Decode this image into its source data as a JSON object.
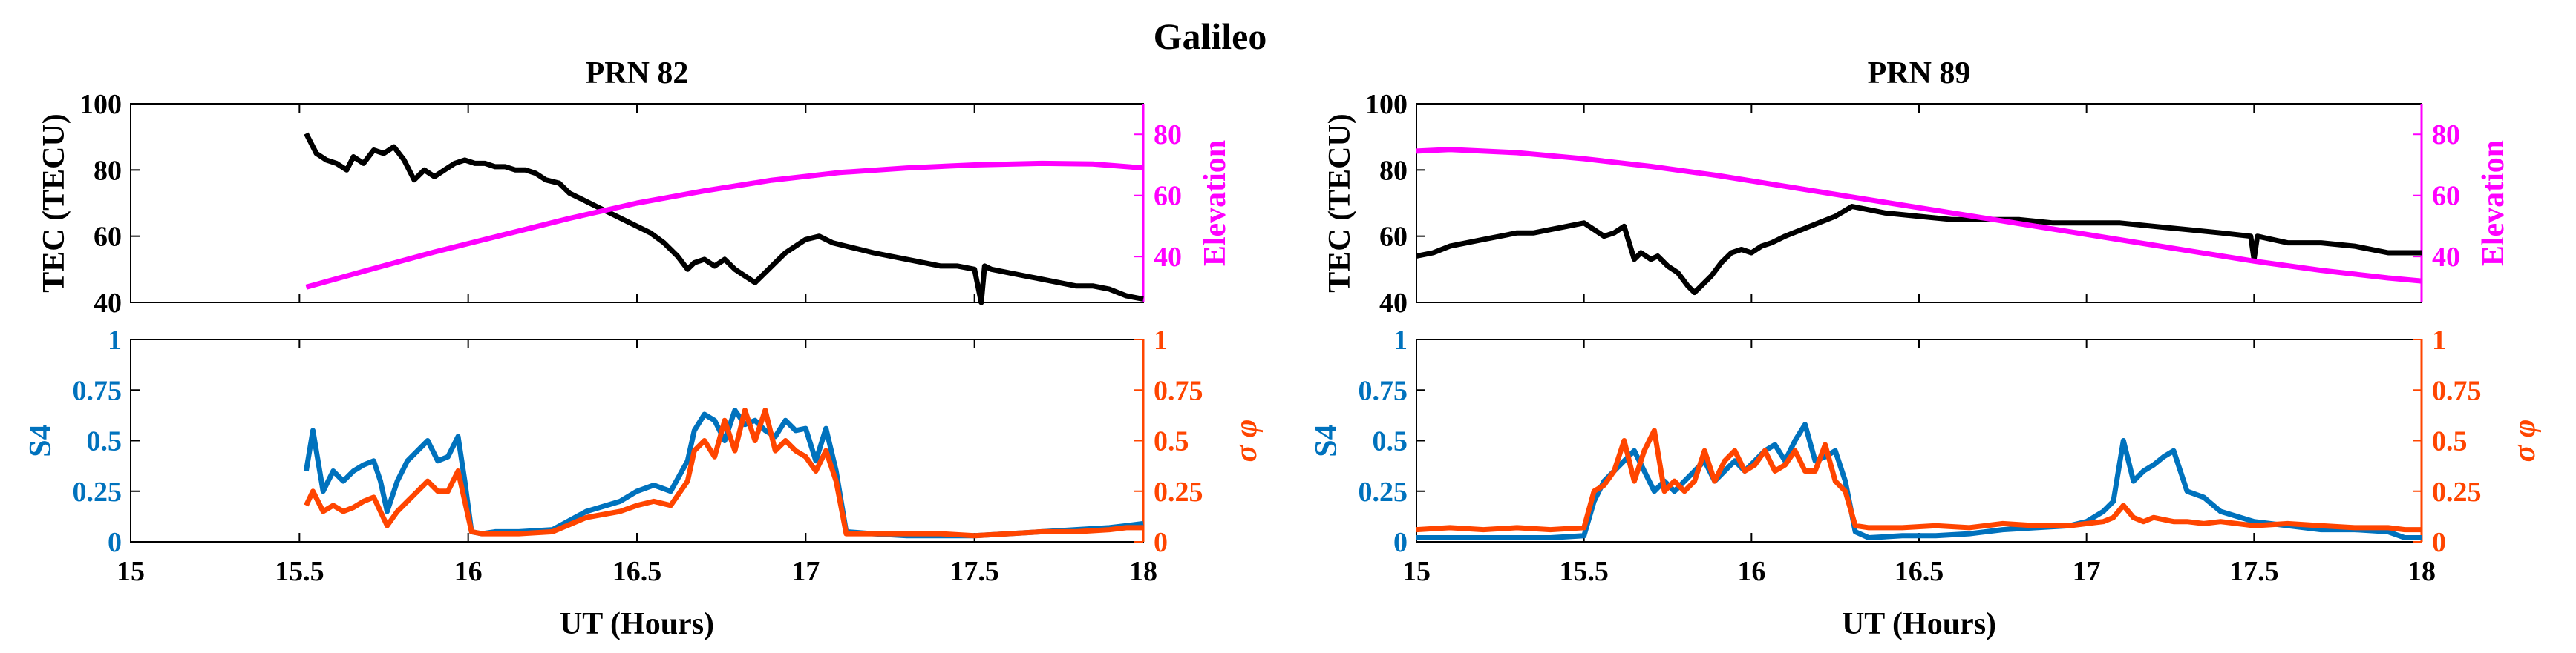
{
  "figure_title": "Galileo",
  "colors": {
    "tec": "#000000",
    "elevation": "#ff00ff",
    "s4": "#0072bd",
    "sigma_phi": "#ff4500"
  },
  "chart_data": [
    {
      "type": "line",
      "title": "PRN 82",
      "xlabel": "UT (Hours)",
      "x_ticks": [
        "15",
        "15.5",
        "16",
        "16.5",
        "17",
        "17.5",
        "18"
      ],
      "xlim": [
        15,
        18
      ],
      "top": {
        "ylabel_left": "TEC (TECU)",
        "ylabel_right": "Elevation",
        "ylim_left": [
          40,
          100
        ],
        "ylim_right": [
          25,
          90
        ],
        "yticks_left": [
          "40",
          "60",
          "80",
          "100"
        ],
        "yticks_right": [
          "40",
          "60",
          "80"
        ],
        "series": [
          {
            "name": "TEC",
            "axis": "left",
            "x": [
              15.52,
              15.55,
              15.58,
              15.61,
              15.64,
              15.66,
              15.69,
              15.72,
              15.75,
              15.78,
              15.81,
              15.84,
              15.87,
              15.9,
              15.93,
              15.96,
              15.99,
              16.02,
              16.05,
              16.08,
              16.11,
              16.14,
              16.17,
              16.2,
              16.23,
              16.27,
              16.3,
              16.34,
              16.38,
              16.42,
              16.46,
              16.5,
              16.54,
              16.58,
              16.62,
              16.65,
              16.67,
              16.7,
              16.73,
              16.76,
              16.79,
              16.82,
              16.85,
              16.88,
              16.91,
              16.94,
              16.97,
              17.0,
              17.04,
              17.08,
              17.12,
              17.16,
              17.2,
              17.25,
              17.3,
              17.35,
              17.4,
              17.45,
              17.5,
              17.52,
              17.53,
              17.55,
              17.6,
              17.65,
              17.7,
              17.75,
              17.8,
              17.85,
              17.9,
              17.95,
              18.0
            ],
            "values": [
              91,
              85,
              83,
              82,
              80,
              84,
              82,
              86,
              85,
              87,
              83,
              77,
              80,
              78,
              80,
              82,
              83,
              82,
              82,
              81,
              81,
              80,
              80,
              79,
              77,
              76,
              73,
              71,
              69,
              67,
              65,
              63,
              61,
              58,
              54,
              50,
              52,
              53,
              51,
              53,
              50,
              48,
              46,
              49,
              52,
              55,
              57,
              59,
              60,
              58,
              57,
              56,
              55,
              54,
              53,
              52,
              51,
              51,
              50,
              40,
              51,
              50,
              49,
              48,
              47,
              46,
              45,
              45,
              44,
              42,
              41
            ]
          },
          {
            "name": "Elevation",
            "axis": "right",
            "x": [
              15.52,
              15.7,
              15.9,
              16.1,
              16.3,
              16.5,
              16.7,
              16.9,
              17.1,
              17.3,
              17.5,
              17.7,
              17.85,
              18.0
            ],
            "values": [
              30,
              35.5,
              41.5,
              47,
              52.5,
              57.5,
              61.5,
              65,
              67.5,
              69,
              70,
              70.5,
              70.3,
              69
            ]
          }
        ]
      },
      "bottom": {
        "ylabel_left": "S4",
        "ylabel_right": "σ φ",
        "ylim_left": [
          0,
          1
        ],
        "ylim_right": [
          0,
          1
        ],
        "yticks_left": [
          "0",
          "0.25",
          "0.5",
          "0.75",
          "1"
        ],
        "yticks_right": [
          "0",
          "0.25",
          "0.5",
          "0.75",
          "1"
        ],
        "series": [
          {
            "name": "S4",
            "axis": "left",
            "x": [
              15.52,
              15.54,
              15.57,
              15.6,
              15.63,
              15.66,
              15.69,
              15.72,
              15.74,
              15.76,
              15.79,
              15.82,
              15.85,
              15.88,
              15.91,
              15.94,
              15.97,
              15.99,
              16.01,
              16.04,
              16.08,
              16.15,
              16.25,
              16.35,
              16.45,
              16.5,
              16.55,
              16.6,
              16.65,
              16.67,
              16.7,
              16.73,
              16.76,
              16.79,
              16.82,
              16.85,
              16.88,
              16.91,
              16.94,
              16.97,
              17.0,
              17.03,
              17.06,
              17.09,
              17.12,
              17.2,
              17.3,
              17.4,
              17.5,
              17.6,
              17.7,
              17.8,
              17.9,
              17.95,
              18.0
            ],
            "values": [
              0.35,
              0.55,
              0.25,
              0.35,
              0.3,
              0.35,
              0.38,
              0.4,
              0.3,
              0.15,
              0.3,
              0.4,
              0.45,
              0.5,
              0.4,
              0.42,
              0.52,
              0.3,
              0.05,
              0.04,
              0.05,
              0.05,
              0.06,
              0.15,
              0.2,
              0.25,
              0.28,
              0.25,
              0.4,
              0.55,
              0.63,
              0.6,
              0.5,
              0.65,
              0.58,
              0.6,
              0.55,
              0.52,
              0.6,
              0.55,
              0.56,
              0.4,
              0.56,
              0.35,
              0.05,
              0.04,
              0.03,
              0.03,
              0.03,
              0.04,
              0.05,
              0.06,
              0.07,
              0.08,
              0.09
            ]
          },
          {
            "name": "σφ",
            "axis": "right",
            "x": [
              15.52,
              15.54,
              15.57,
              15.6,
              15.63,
              15.66,
              15.69,
              15.72,
              15.74,
              15.76,
              15.79,
              15.82,
              15.85,
              15.88,
              15.91,
              15.94,
              15.97,
              15.99,
              16.01,
              16.04,
              16.08,
              16.15,
              16.25,
              16.35,
              16.45,
              16.5,
              16.55,
              16.6,
              16.65,
              16.67,
              16.7,
              16.73,
              16.76,
              16.79,
              16.82,
              16.85,
              16.88,
              16.91,
              16.94,
              16.97,
              17.0,
              17.03,
              17.06,
              17.09,
              17.12,
              17.2,
              17.3,
              17.4,
              17.5,
              17.6,
              17.7,
              17.8,
              17.9,
              17.95,
              18.0
            ],
            "values": [
              0.18,
              0.25,
              0.15,
              0.18,
              0.15,
              0.17,
              0.2,
              0.22,
              0.15,
              0.08,
              0.15,
              0.2,
              0.25,
              0.3,
              0.25,
              0.25,
              0.35,
              0.2,
              0.05,
              0.04,
              0.04,
              0.04,
              0.05,
              0.12,
              0.15,
              0.18,
              0.2,
              0.18,
              0.3,
              0.45,
              0.5,
              0.42,
              0.6,
              0.45,
              0.65,
              0.5,
              0.65,
              0.45,
              0.5,
              0.45,
              0.42,
              0.35,
              0.45,
              0.3,
              0.04,
              0.04,
              0.04,
              0.04,
              0.03,
              0.04,
              0.05,
              0.05,
              0.06,
              0.07,
              0.07
            ]
          }
        ]
      }
    },
    {
      "type": "line",
      "title": "PRN 89",
      "xlabel": "UT (Hours)",
      "x_ticks": [
        "15",
        "15.5",
        "16",
        "16.5",
        "17",
        "17.5",
        "18"
      ],
      "xlim": [
        15,
        18
      ],
      "top": {
        "ylabel_left": "TEC (TECU)",
        "ylabel_right": "Elevation",
        "ylim_left": [
          40,
          100
        ],
        "ylim_right": [
          25,
          90
        ],
        "yticks_left": [
          "40",
          "60",
          "80",
          "100"
        ],
        "yticks_right": [
          "40",
          "60",
          "80"
        ],
        "series": [
          {
            "name": "TEC",
            "axis": "left",
            "x": [
              15.0,
              15.05,
              15.1,
              15.15,
              15.2,
              15.25,
              15.3,
              15.35,
              15.4,
              15.45,
              15.5,
              15.53,
              15.56,
              15.59,
              15.62,
              15.65,
              15.67,
              15.7,
              15.72,
              15.75,
              15.78,
              15.81,
              15.83,
              15.85,
              15.88,
              15.91,
              15.94,
              15.97,
              16.0,
              16.03,
              16.06,
              16.1,
              16.15,
              16.2,
              16.25,
              16.3,
              16.35,
              16.4,
              16.5,
              16.6,
              16.7,
              16.8,
              16.9,
              17.0,
              17.1,
              17.2,
              17.3,
              17.4,
              17.49,
              17.5,
              17.51,
              17.6,
              17.7,
              17.8,
              17.9,
              18.0
            ],
            "values": [
              54,
              55,
              57,
              58,
              59,
              60,
              61,
              61,
              62,
              63,
              64,
              62,
              60,
              61,
              63,
              53,
              55,
              53,
              54,
              51,
              49,
              45,
              43,
              45,
              48,
              52,
              55,
              56,
              55,
              57,
              58,
              60,
              62,
              64,
              66,
              69,
              68,
              67,
              66,
              65,
              65,
              65,
              64,
              64,
              64,
              63,
              62,
              61,
              60,
              53,
              60,
              58,
              58,
              57,
              55,
              55
            ]
          },
          {
            "name": "Elevation",
            "axis": "right",
            "x": [
              15.0,
              15.1,
              15.3,
              15.5,
              15.7,
              15.9,
              16.1,
              16.3,
              16.5,
              16.7,
              16.9,
              17.1,
              17.3,
              17.5,
              17.7,
              17.9,
              18.0
            ],
            "values": [
              74.5,
              75,
              74,
              72,
              69.5,
              66.5,
              63,
              59.5,
              56,
              52.5,
              49,
              45.5,
              42,
              38.5,
              35.5,
              33,
              32
            ]
          }
        ]
      },
      "bottom": {
        "ylabel_left": "S4",
        "ylabel_right": "σ φ",
        "ylim_left": [
          0,
          1
        ],
        "ylim_right": [
          0,
          1
        ],
        "yticks_left": [
          "0",
          "0.25",
          "0.5",
          "0.75",
          "1"
        ],
        "yticks_right": [
          "0",
          "0.25",
          "0.5",
          "0.75",
          "1"
        ],
        "series": [
          {
            "name": "S4",
            "axis": "left",
            "x": [
              15.0,
              15.1,
              15.2,
              15.3,
              15.4,
              15.5,
              15.53,
              15.56,
              15.59,
              15.62,
              15.65,
              15.68,
              15.71,
              15.74,
              15.77,
              15.8,
              15.83,
              15.86,
              15.89,
              15.92,
              15.95,
              15.98,
              16.01,
              16.04,
              16.07,
              16.1,
              16.13,
              16.16,
              16.19,
              16.22,
              16.25,
              16.28,
              16.31,
              16.35,
              16.45,
              16.55,
              16.65,
              16.75,
              16.85,
              16.95,
              17.0,
              17.05,
              17.08,
              17.11,
              17.14,
              17.17,
              17.2,
              17.23,
              17.26,
              17.3,
              17.35,
              17.4,
              17.5,
              17.6,
              17.7,
              17.8,
              17.9,
              17.95,
              18.0
            ],
            "values": [
              0.02,
              0.02,
              0.02,
              0.02,
              0.02,
              0.03,
              0.2,
              0.3,
              0.35,
              0.4,
              0.45,
              0.35,
              0.25,
              0.3,
              0.25,
              0.3,
              0.35,
              0.4,
              0.3,
              0.35,
              0.4,
              0.35,
              0.4,
              0.45,
              0.48,
              0.4,
              0.5,
              0.58,
              0.4,
              0.42,
              0.45,
              0.3,
              0.05,
              0.02,
              0.03,
              0.03,
              0.04,
              0.06,
              0.07,
              0.08,
              0.1,
              0.15,
              0.2,
              0.5,
              0.3,
              0.35,
              0.38,
              0.42,
              0.45,
              0.25,
              0.22,
              0.15,
              0.1,
              0.08,
              0.06,
              0.06,
              0.05,
              0.02,
              0.02
            ]
          },
          {
            "name": "σφ",
            "axis": "right",
            "x": [
              15.0,
              15.1,
              15.2,
              15.3,
              15.4,
              15.5,
              15.53,
              15.56,
              15.59,
              15.62,
              15.65,
              15.68,
              15.71,
              15.74,
              15.77,
              15.8,
              15.83,
              15.86,
              15.89,
              15.92,
              15.95,
              15.98,
              16.01,
              16.04,
              16.07,
              16.1,
              16.13,
              16.16,
              16.19,
              16.22,
              16.25,
              16.28,
              16.31,
              16.35,
              16.45,
              16.55,
              16.65,
              16.75,
              16.85,
              16.95,
              17.0,
              17.05,
              17.08,
              17.11,
              17.14,
              17.17,
              17.2,
              17.23,
              17.26,
              17.3,
              17.35,
              17.4,
              17.5,
              17.6,
              17.7,
              17.8,
              17.9,
              17.95,
              18.0
            ],
            "values": [
              0.06,
              0.07,
              0.06,
              0.07,
              0.06,
              0.07,
              0.25,
              0.28,
              0.35,
              0.5,
              0.3,
              0.45,
              0.55,
              0.25,
              0.3,
              0.25,
              0.3,
              0.45,
              0.3,
              0.4,
              0.45,
              0.35,
              0.38,
              0.45,
              0.35,
              0.38,
              0.45,
              0.35,
              0.35,
              0.48,
              0.3,
              0.25,
              0.08,
              0.07,
              0.07,
              0.08,
              0.07,
              0.09,
              0.08,
              0.08,
              0.09,
              0.1,
              0.12,
              0.18,
              0.12,
              0.1,
              0.12,
              0.11,
              0.1,
              0.1,
              0.09,
              0.1,
              0.08,
              0.09,
              0.08,
              0.07,
              0.07,
              0.06,
              0.06
            ]
          }
        ]
      }
    }
  ]
}
